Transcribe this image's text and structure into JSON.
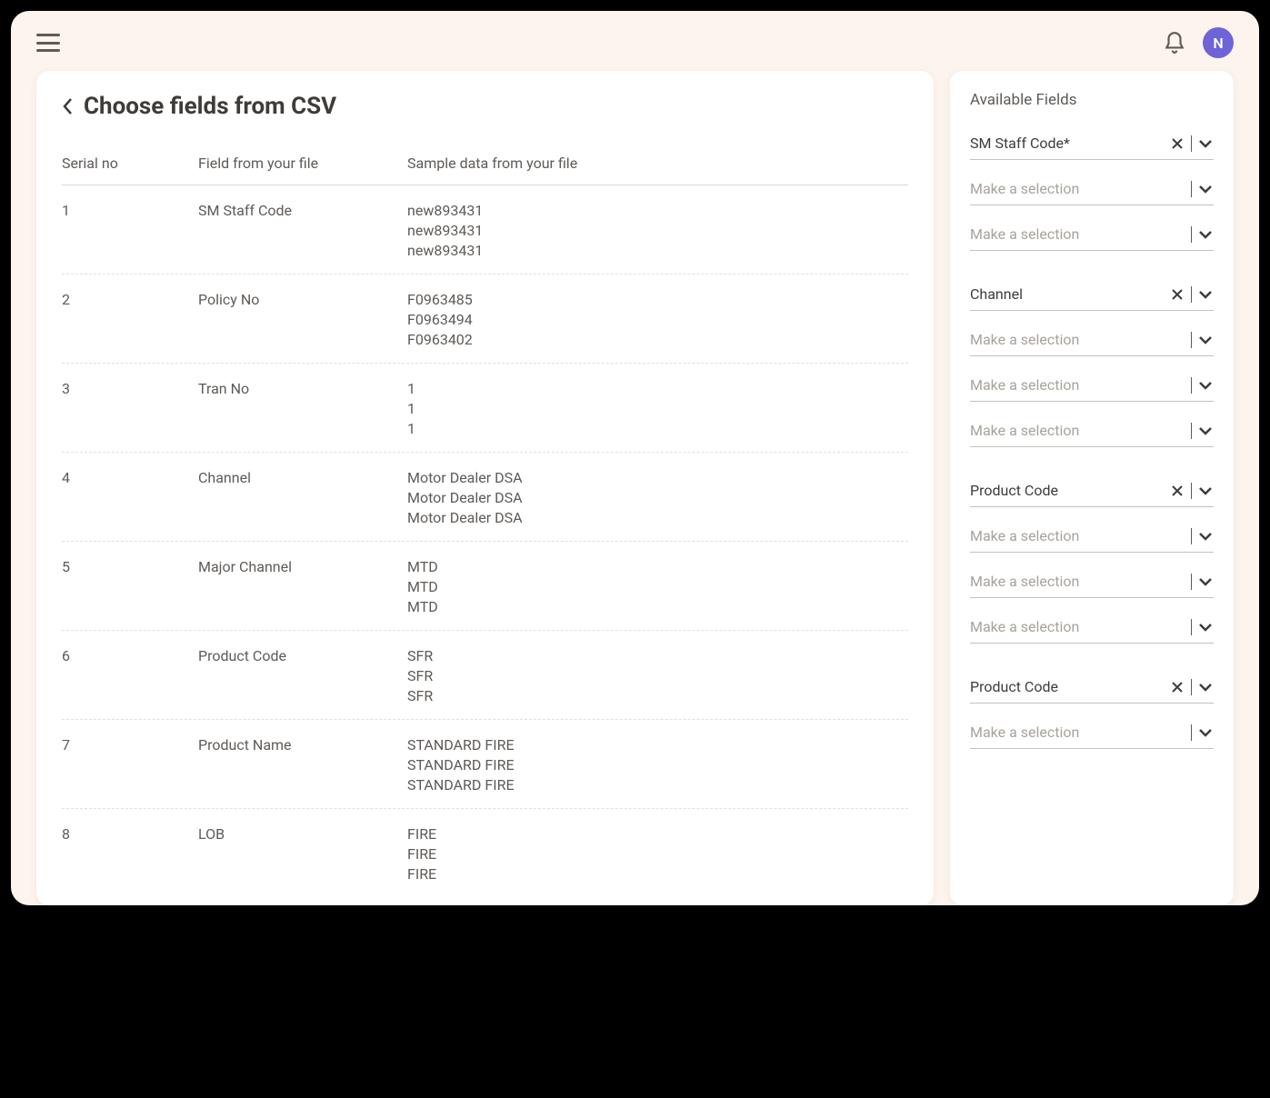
{
  "header": {
    "avatar_initial": "N"
  },
  "page": {
    "title": "Choose fields from CSV"
  },
  "table": {
    "columns": {
      "serial": "Serial no",
      "field": "Field from your file",
      "sample": "Sample data from your file"
    },
    "rows": [
      {
        "serial": "1",
        "field": "SM Staff Code",
        "samples": [
          "new893431",
          "new893431",
          "new893431"
        ]
      },
      {
        "serial": "2",
        "field": "Policy No",
        "samples": [
          "F0963485",
          "F0963494",
          "F0963402"
        ]
      },
      {
        "serial": "3",
        "field": "Tran No",
        "samples": [
          "1",
          "1",
          "1"
        ]
      },
      {
        "serial": "4",
        "field": "Channel",
        "samples": [
          "Motor Dealer DSA",
          "Motor Dealer DSA",
          "Motor Dealer DSA"
        ]
      },
      {
        "serial": "5",
        "field": "Major Channel",
        "samples": [
          "MTD",
          "MTD",
          "MTD"
        ]
      },
      {
        "serial": "6",
        "field": "Product Code",
        "samples": [
          "SFR",
          "SFR",
          "SFR"
        ]
      },
      {
        "serial": "7",
        "field": "Product Name",
        "samples": [
          "STANDARD FIRE",
          "STANDARD FIRE",
          "STANDARD FIRE"
        ]
      },
      {
        "serial": "8",
        "field": "LOB",
        "samples": [
          "FIRE",
          "FIRE",
          "FIRE"
        ]
      }
    ]
  },
  "available": {
    "title": "Available Fields",
    "placeholder": "Make a selection",
    "groups": [
      {
        "selected": "SM Staff Code*",
        "extras": 2
      },
      {
        "selected": "Channel",
        "extras": 3
      },
      {
        "selected": "Product Code",
        "extras": 3
      },
      {
        "selected": "Product Code",
        "extras": 1
      }
    ]
  },
  "colors": {
    "page_bg": "#fcf4ed",
    "panel_bg": "#ffffff",
    "text_primary": "#3f3b38",
    "text_secondary": "#5f5a56",
    "text_muted": "#a8a29c",
    "border": "#dcd6d0",
    "dashed_border": "#e4ded7",
    "avatar_bg": "#6f63d8"
  }
}
